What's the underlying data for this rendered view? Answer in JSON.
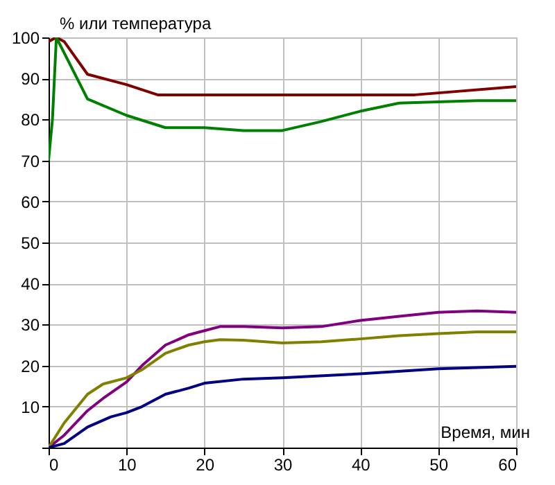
{
  "chart_data": {
    "type": "line",
    "xlabel": "Время, мин",
    "ylabel": "% или температура",
    "xlim": [
      0,
      60
    ],
    "ylim": [
      0,
      100
    ],
    "xticks": [
      0,
      10,
      20,
      30,
      40,
      50,
      60
    ],
    "yticks": [
      {
        "value": 0,
        "label": null
      },
      10,
      20,
      30,
      40,
      50,
      60,
      70,
      80,
      90,
      100
    ],
    "grid": true,
    "legend": false,
    "line_style": "solid",
    "marker": "none",
    "series": [
      {
        "color": "#800000",
        "x": [
          0,
          1,
          2,
          5,
          10,
          14,
          30,
          47,
          60
        ],
        "values": [
          99,
          100,
          99,
          91,
          88.5,
          86,
          86,
          86,
          88
        ]
      },
      {
        "color": "#008000",
        "x": [
          0,
          0.5,
          1,
          5,
          10,
          15,
          20,
          25,
          30,
          35,
          40,
          45,
          50,
          55,
          60
        ],
        "values": [
          70,
          80,
          100,
          85,
          81,
          78,
          78,
          77.3,
          77.3,
          79.5,
          82,
          84,
          84.3,
          84.6,
          84.6
        ]
      },
      {
        "color": "#800080",
        "x": [
          0,
          2,
          5,
          7,
          10,
          12,
          15,
          18,
          20,
          22,
          25,
          30,
          35,
          40,
          45,
          50,
          55,
          60
        ],
        "values": [
          0,
          3,
          9,
          12,
          16,
          20,
          25,
          27.5,
          28.5,
          29.5,
          29.5,
          29.2,
          29.5,
          31,
          32,
          33,
          33.3,
          33
        ]
      },
      {
        "color": "#808000",
        "x": [
          0,
          2,
          5,
          7,
          10,
          12,
          15,
          18,
          20,
          22,
          25,
          30,
          35,
          40,
          45,
          50,
          55,
          60
        ],
        "values": [
          0,
          6,
          13,
          15.5,
          17,
          19,
          23,
          25,
          25.8,
          26.3,
          26.2,
          25.5,
          25.8,
          26.5,
          27.3,
          27.8,
          28.2,
          28.2
        ]
      },
      {
        "color": "#000080",
        "x": [
          0,
          2,
          5,
          8,
          10,
          12,
          15,
          18,
          20,
          25,
          30,
          40,
          50,
          60
        ],
        "values": [
          0,
          1,
          5,
          7.5,
          8.5,
          10,
          13,
          14.5,
          15.7,
          16.7,
          17,
          18,
          19.2,
          19.8
        ]
      }
    ]
  }
}
